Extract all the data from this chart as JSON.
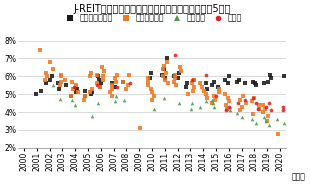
{
  "title": "J-REITによる物件取得時の取引利回り（東京都心5区）",
  "xlabel_suffix": "（年）",
  "ylim": [
    0.02,
    0.085
  ],
  "yticks": [
    0.02,
    0.03,
    0.04,
    0.05,
    0.06,
    0.07,
    0.08
  ],
  "ytick_labels": [
    "2%",
    "3%",
    "4%",
    "5%",
    "6%",
    "7%",
    "8%"
  ],
  "xlim": [
    1999.5,
    2020.5
  ],
  "xticks": [
    2000,
    2001,
    2002,
    2003,
    2004,
    2005,
    2006,
    2007,
    2008,
    2009,
    2010,
    2011,
    2012,
    2013,
    2014,
    2015,
    2016,
    2017,
    2018,
    2019,
    2020
  ],
  "legend": [
    {
      "label": "賣貸マンション",
      "color": "#1a1a1a",
      "marker": "s"
    },
    {
      "label": "オフィスビル",
      "color": "#f07820",
      "marker": "s"
    },
    {
      "label": "商業施設",
      "color": "#4a9a4a",
      "marker": "^"
    },
    {
      "label": "ホテル",
      "color": "#e02020",
      "marker": "o"
    }
  ],
  "series": {
    "mansion": {
      "color": "#1a1a1a",
      "marker": "s",
      "data": [
        [
          2001,
          0.05
        ],
        [
          2001,
          0.052
        ],
        [
          2002,
          0.06
        ],
        [
          2002,
          0.058
        ],
        [
          2002,
          0.056
        ],
        [
          2003,
          0.053
        ],
        [
          2003,
          0.056
        ],
        [
          2003,
          0.055
        ],
        [
          2004,
          0.051
        ],
        [
          2004,
          0.053
        ],
        [
          2004,
          0.049
        ],
        [
          2005,
          0.051
        ],
        [
          2005,
          0.05
        ],
        [
          2005,
          0.049
        ],
        [
          2005,
          0.052
        ],
        [
          2006,
          0.06
        ],
        [
          2006,
          0.058
        ],
        [
          2006,
          0.056
        ],
        [
          2006,
          0.054
        ],
        [
          2007,
          0.056
        ],
        [
          2007,
          0.054
        ],
        [
          2008,
          0.057
        ],
        [
          2010,
          0.059
        ],
        [
          2010,
          0.062
        ],
        [
          2011,
          0.064
        ],
        [
          2011,
          0.07
        ],
        [
          2011,
          0.061
        ],
        [
          2011,
          0.059
        ],
        [
          2012,
          0.059
        ],
        [
          2012,
          0.06
        ],
        [
          2012,
          0.062
        ],
        [
          2013,
          0.056
        ],
        [
          2013,
          0.054
        ],
        [
          2013,
          0.058
        ],
        [
          2014,
          0.053
        ],
        [
          2014,
          0.056
        ],
        [
          2015,
          0.057
        ],
        [
          2015,
          0.055
        ],
        [
          2015,
          0.054
        ],
        [
          2016,
          0.056
        ],
        [
          2016,
          0.058
        ],
        [
          2016,
          0.06
        ],
        [
          2017,
          0.057
        ],
        [
          2017,
          0.056
        ],
        [
          2017,
          0.058
        ],
        [
          2018,
          0.055
        ],
        [
          2018,
          0.057
        ],
        [
          2018,
          0.056
        ],
        [
          2019,
          0.057
        ],
        [
          2019,
          0.056
        ],
        [
          2019,
          0.059
        ],
        [
          2019,
          0.061
        ],
        [
          2020,
          0.06
        ]
      ]
    },
    "office": {
      "color": "#f07820",
      "marker": "s",
      "data": [
        [
          2001,
          0.075
        ],
        [
          2002,
          0.068
        ],
        [
          2002,
          0.064
        ],
        [
          2002,
          0.062
        ],
        [
          2002,
          0.06
        ],
        [
          2002,
          0.058
        ],
        [
          2003,
          0.06
        ],
        [
          2003,
          0.057
        ],
        [
          2003,
          0.055
        ],
        [
          2003,
          0.058
        ],
        [
          2003,
          0.061
        ],
        [
          2004,
          0.053
        ],
        [
          2004,
          0.055
        ],
        [
          2004,
          0.057
        ],
        [
          2004,
          0.051
        ],
        [
          2004,
          0.049
        ],
        [
          2005,
          0.053
        ],
        [
          2005,
          0.051
        ],
        [
          2005,
          0.049
        ],
        [
          2005,
          0.047
        ],
        [
          2005,
          0.062
        ],
        [
          2005,
          0.06
        ],
        [
          2006,
          0.06
        ],
        [
          2006,
          0.058
        ],
        [
          2006,
          0.056
        ],
        [
          2006,
          0.054
        ],
        [
          2006,
          0.061
        ],
        [
          2006,
          0.063
        ],
        [
          2006,
          0.065
        ],
        [
          2007,
          0.053
        ],
        [
          2007,
          0.051
        ],
        [
          2007,
          0.049
        ],
        [
          2007,
          0.055
        ],
        [
          2007,
          0.057
        ],
        [
          2007,
          0.059
        ],
        [
          2007,
          0.061
        ],
        [
          2008,
          0.053
        ],
        [
          2008,
          0.057
        ],
        [
          2008,
          0.055
        ],
        [
          2008,
          0.061
        ],
        [
          2009,
          0.031
        ],
        [
          2010,
          0.049
        ],
        [
          2010,
          0.051
        ],
        [
          2010,
          0.047
        ],
        [
          2010,
          0.053
        ],
        [
          2010,
          0.055
        ],
        [
          2010,
          0.057
        ],
        [
          2010,
          0.059
        ],
        [
          2011,
          0.062
        ],
        [
          2011,
          0.06
        ],
        [
          2011,
          0.058
        ],
        [
          2011,
          0.056
        ],
        [
          2011,
          0.064
        ],
        [
          2011,
          0.066
        ],
        [
          2011,
          0.068
        ],
        [
          2012,
          0.059
        ],
        [
          2012,
          0.057
        ],
        [
          2012,
          0.055
        ],
        [
          2012,
          0.061
        ],
        [
          2012,
          0.063
        ],
        [
          2012,
          0.065
        ],
        [
          2013,
          0.056
        ],
        [
          2013,
          0.054
        ],
        [
          2013,
          0.052
        ],
        [
          2013,
          0.05
        ],
        [
          2013,
          0.058
        ],
        [
          2014,
          0.052
        ],
        [
          2014,
          0.05
        ],
        [
          2014,
          0.048
        ],
        [
          2014,
          0.054
        ],
        [
          2014,
          0.056
        ],
        [
          2015,
          0.049
        ],
        [
          2015,
          0.047
        ],
        [
          2015,
          0.051
        ],
        [
          2015,
          0.053
        ],
        [
          2015,
          0.045
        ],
        [
          2016,
          0.046
        ],
        [
          2016,
          0.048
        ],
        [
          2016,
          0.044
        ],
        [
          2016,
          0.05
        ],
        [
          2016,
          0.042
        ],
        [
          2017,
          0.045
        ],
        [
          2017,
          0.047
        ],
        [
          2017,
          0.043
        ],
        [
          2017,
          0.049
        ],
        [
          2017,
          0.041
        ],
        [
          2018,
          0.044
        ],
        [
          2018,
          0.042
        ],
        [
          2018,
          0.046
        ],
        [
          2018,
          0.048
        ],
        [
          2018,
          0.039
        ],
        [
          2019,
          0.042
        ],
        [
          2019,
          0.04
        ],
        [
          2019,
          0.038
        ],
        [
          2019,
          0.035
        ],
        [
          2019,
          0.044
        ],
        [
          2020,
          0.028
        ]
      ]
    },
    "commercial": {
      "color": "#4a9a4a",
      "marker": "^",
      "data": [
        [
          2002,
          0.055
        ],
        [
          2003,
          0.0475
        ],
        [
          2004,
          0.0465
        ],
        [
          2004,
          0.044
        ],
        [
          2005,
          0.038
        ],
        [
          2006,
          0.045
        ],
        [
          2007,
          0.046
        ],
        [
          2007,
          0.049
        ],
        [
          2008,
          0.047
        ],
        [
          2010,
          0.042
        ],
        [
          2011,
          0.048
        ],
        [
          2012,
          0.045
        ],
        [
          2013,
          0.045
        ],
        [
          2013,
          0.042
        ],
        [
          2014,
          0.043
        ],
        [
          2014,
          0.046
        ],
        [
          2015,
          0.043
        ],
        [
          2015,
          0.045
        ],
        [
          2015,
          0.047
        ],
        [
          2016,
          0.041
        ],
        [
          2016,
          0.043
        ],
        [
          2017,
          0.0395
        ],
        [
          2017,
          0.0375
        ],
        [
          2018,
          0.036
        ],
        [
          2018,
          0.034
        ],
        [
          2019,
          0.037
        ],
        [
          2019,
          0.033
        ],
        [
          2019,
          0.035
        ],
        [
          2020,
          0.034
        ],
        [
          2020,
          0.036
        ]
      ]
    },
    "hotel": {
      "color": "#e02020",
      "marker": "o",
      "data": [
        [
          2004,
          0.054
        ],
        [
          2006,
          0.055
        ],
        [
          2007,
          0.054
        ],
        [
          2008,
          0.056
        ],
        [
          2012,
          0.072
        ],
        [
          2013,
          0.058
        ],
        [
          2014,
          0.061
        ],
        [
          2015,
          0.049
        ],
        [
          2016,
          0.043
        ],
        [
          2016,
          0.041
        ],
        [
          2017,
          0.045
        ],
        [
          2017,
          0.047
        ],
        [
          2018,
          0.042
        ],
        [
          2018,
          0.045
        ],
        [
          2018,
          0.048
        ],
        [
          2019,
          0.043
        ],
        [
          2019,
          0.045
        ],
        [
          2019,
          0.041
        ],
        [
          2020,
          0.043
        ],
        [
          2020,
          0.041
        ]
      ]
    }
  },
  "bg_color": "#ffffff",
  "grid_color": "#cccccc",
  "title_fontsize": 7.0,
  "legend_fontsize": 5.8,
  "tick_fontsize": 5.5
}
